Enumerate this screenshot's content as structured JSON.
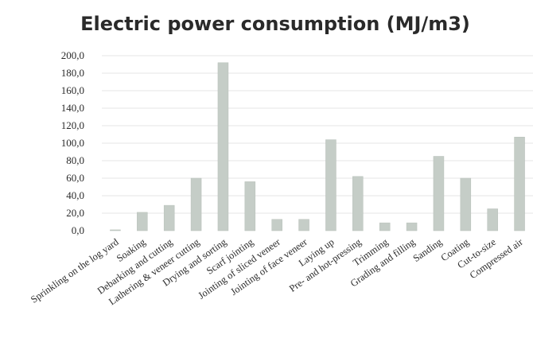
{
  "chart_data": {
    "type": "bar",
    "title": "Electric power consumption (MJ/m3)",
    "xlabel": "",
    "ylabel": "",
    "ylim": [
      0,
      200
    ],
    "ytick_labels": [
      "0,0",
      "20,0",
      "40,0",
      "60,0",
      "80,0",
      "100,0",
      "120,0",
      "140,0",
      "160,0",
      "180,0",
      "200,0"
    ],
    "grid": true,
    "legend": "none",
    "bar_color": "#c5cdc7",
    "categories": [
      "Sprinkling on the log yard",
      "Soaking",
      "Debarking and cutting",
      "Lathering & veneer cutting",
      "Drying and sorting",
      "Scarf jointing",
      "Jointing of sliced veneer",
      "Jointing of face veneer",
      "Laying up",
      "Pre- and hot-pressing",
      "Trimming",
      "Grading and filling",
      "Sanding",
      "Coating",
      "Cut-to-size",
      "Compressed air"
    ],
    "values": [
      1,
      21,
      29,
      60,
      192,
      56,
      13,
      13,
      104,
      62,
      9,
      9,
      85,
      60,
      25,
      107
    ]
  }
}
